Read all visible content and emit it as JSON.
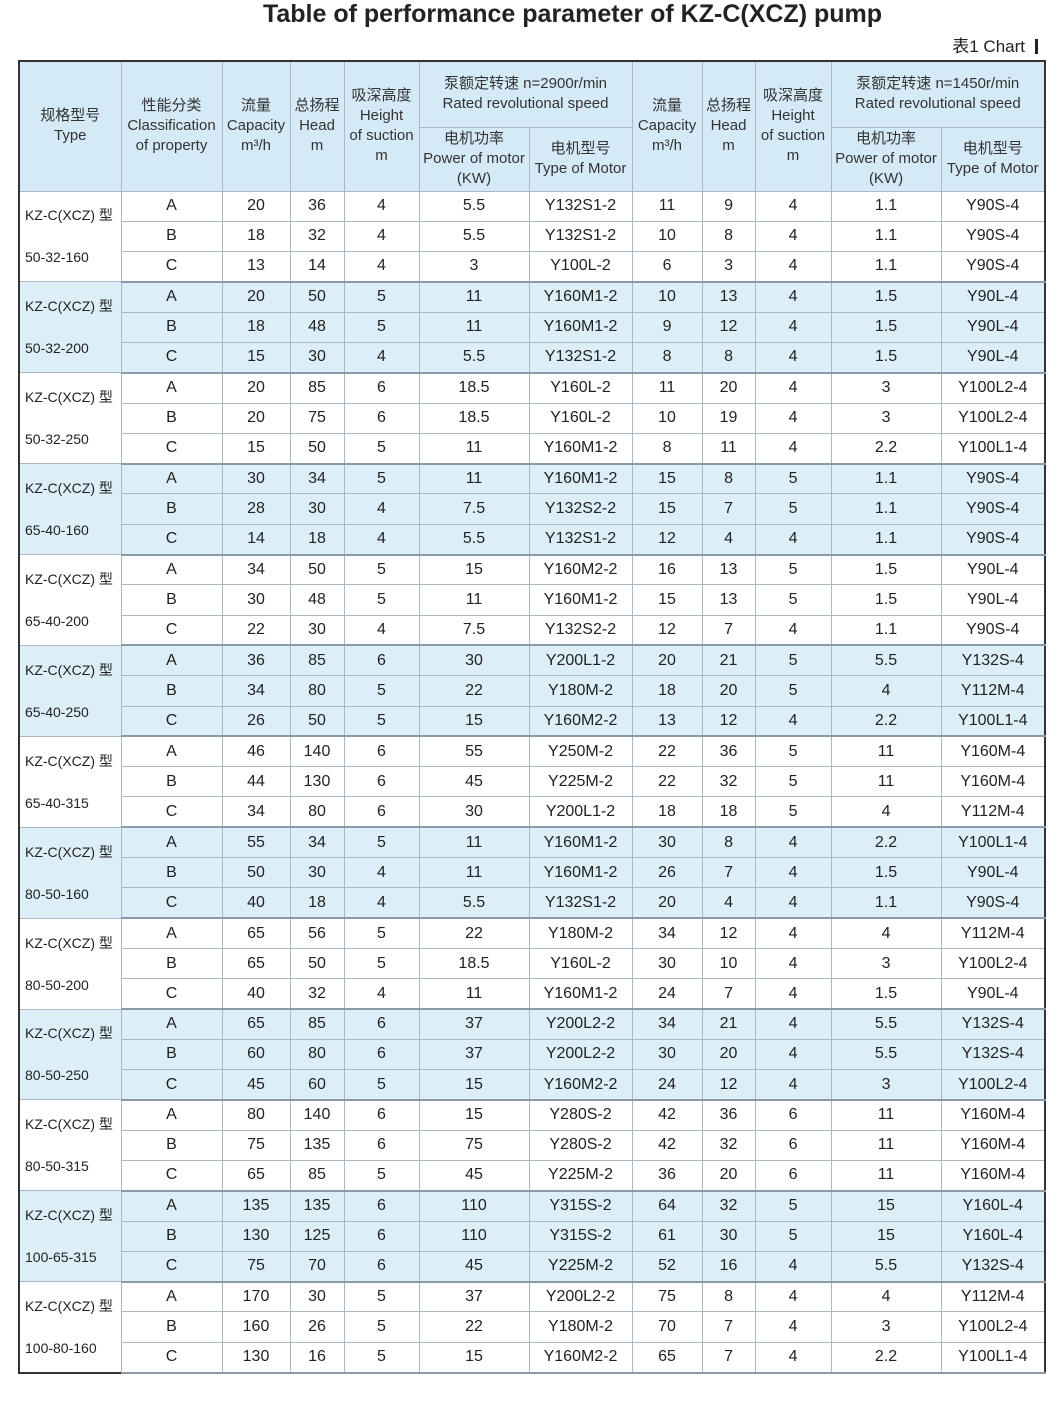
{
  "title": "Table of performance parameter of KZ-C(XCZ) pump",
  "chart_label": "表1  Chart",
  "header": {
    "left": [
      [
        "规格型号",
        "Type"
      ],
      [
        "性能分类",
        "Classification",
        "of property"
      ],
      [
        "流量",
        "Capacity",
        "m³/h"
      ],
      [
        "总扬程",
        "Head",
        "m"
      ],
      [
        "吸深高度",
        "Height",
        "of suction",
        "m"
      ]
    ],
    "speed_1": {
      "label": [
        "泵额定转速 n=2900r/min",
        "Rated revolutional speed"
      ],
      "sub": [
        [
          "电机功率",
          "Power of motor",
          "(KW)"
        ],
        [
          "电机型号",
          "Type of Motor"
        ]
      ]
    },
    "mid": [
      [
        "流量",
        "Capacity",
        "m³/h"
      ],
      [
        "总扬程",
        "Head",
        "m"
      ],
      [
        "吸深高度",
        "Height",
        "of suction",
        "m"
      ]
    ],
    "speed_2": {
      "label": [
        "泵额定转速 n=1450r/min",
        "Rated revolutional speed"
      ],
      "sub": [
        [
          "电机功率",
          "Power of motor",
          "(KW)"
        ],
        [
          "电机型号",
          "Type of Motor"
        ]
      ]
    }
  },
  "groups": [
    {
      "model": [
        "KZ-C(XCZ) 型",
        "50-32-160"
      ],
      "rows": [
        [
          "A",
          20,
          36,
          4,
          5.5,
          "Y132S1-2",
          11,
          9,
          4,
          1.1,
          "Y90S-4"
        ],
        [
          "B",
          18,
          32,
          4,
          5.5,
          "Y132S1-2",
          10,
          8,
          4,
          1.1,
          "Y90S-4"
        ],
        [
          "C",
          13,
          14,
          4,
          3,
          "Y100L-2",
          6,
          3,
          4,
          1.1,
          "Y90S-4"
        ]
      ]
    },
    {
      "model": [
        "KZ-C(XCZ) 型",
        "50-32-200"
      ],
      "rows": [
        [
          "A",
          20,
          50,
          5,
          11,
          "Y160M1-2",
          10,
          13,
          4,
          1.5,
          "Y90L-4"
        ],
        [
          "B",
          18,
          48,
          5,
          11,
          "Y160M1-2",
          9,
          12,
          4,
          1.5,
          "Y90L-4"
        ],
        [
          "C",
          15,
          30,
          4,
          5.5,
          "Y132S1-2",
          8,
          8,
          4,
          1.5,
          "Y90L-4"
        ]
      ]
    },
    {
      "model": [
        "KZ-C(XCZ) 型",
        "50-32-250"
      ],
      "rows": [
        [
          "A",
          20,
          85,
          6,
          18.5,
          "Y160L-2",
          11,
          20,
          4,
          3,
          "Y100L2-4"
        ],
        [
          "B",
          20,
          75,
          6,
          18.5,
          "Y160L-2",
          10,
          19,
          4,
          3,
          "Y100L2-4"
        ],
        [
          "C",
          15,
          50,
          5,
          11,
          "Y160M1-2",
          8,
          11,
          4,
          2.2,
          "Y100L1-4"
        ]
      ]
    },
    {
      "model": [
        "KZ-C(XCZ) 型",
        "65-40-160"
      ],
      "rows": [
        [
          "A",
          30,
          34,
          5,
          11,
          "Y160M1-2",
          15,
          8,
          5,
          1.1,
          "Y90S-4"
        ],
        [
          "B",
          28,
          30,
          4,
          7.5,
          "Y132S2-2",
          15,
          7,
          5,
          1.1,
          "Y90S-4"
        ],
        [
          "C",
          14,
          18,
          4,
          5.5,
          "Y132S1-2",
          12,
          4,
          4,
          1.1,
          "Y90S-4"
        ]
      ]
    },
    {
      "model": [
        "KZ-C(XCZ) 型",
        "65-40-200"
      ],
      "rows": [
        [
          "A",
          34,
          50,
          5,
          15,
          "Y160M2-2",
          16,
          13,
          5,
          1.5,
          "Y90L-4"
        ],
        [
          "B",
          30,
          48,
          5,
          11,
          "Y160M1-2",
          15,
          13,
          5,
          1.5,
          "Y90L-4"
        ],
        [
          "C",
          22,
          30,
          4,
          7.5,
          "Y132S2-2",
          12,
          7,
          4,
          1.1,
          "Y90S-4"
        ]
      ]
    },
    {
      "model": [
        "KZ-C(XCZ) 型",
        "65-40-250"
      ],
      "rows": [
        [
          "A",
          36,
          85,
          6,
          30,
          "Y200L1-2",
          20,
          21,
          5,
          5.5,
          "Y132S-4"
        ],
        [
          "B",
          34,
          80,
          5,
          22,
          "Y180M-2",
          18,
          20,
          5,
          4,
          "Y112M-4"
        ],
        [
          "C",
          26,
          50,
          5,
          15,
          "Y160M2-2",
          13,
          12,
          4,
          2.2,
          "Y100L1-4"
        ]
      ]
    },
    {
      "model": [
        "KZ-C(XCZ) 型",
        "65-40-315"
      ],
      "rows": [
        [
          "A",
          46,
          140,
          6,
          55,
          "Y250M-2",
          22,
          36,
          5,
          11,
          "Y160M-4"
        ],
        [
          "B",
          44,
          130,
          6,
          45,
          "Y225M-2",
          22,
          32,
          5,
          11,
          "Y160M-4"
        ],
        [
          "C",
          34,
          80,
          6,
          30,
          "Y200L1-2",
          18,
          18,
          5,
          4,
          "Y112M-4"
        ]
      ]
    },
    {
      "model": [
        "KZ-C(XCZ) 型",
        "80-50-160"
      ],
      "rows": [
        [
          "A",
          55,
          34,
          5,
          11,
          "Y160M1-2",
          30,
          8,
          4,
          2.2,
          "Y100L1-4"
        ],
        [
          "B",
          50,
          30,
          4,
          11,
          "Y160M1-2",
          26,
          7,
          4,
          1.5,
          "Y90L-4"
        ],
        [
          "C",
          40,
          18,
          4,
          5.5,
          "Y132S1-2",
          20,
          4,
          4,
          1.1,
          "Y90S-4"
        ]
      ]
    },
    {
      "model": [
        "KZ-C(XCZ) 型",
        "80-50-200"
      ],
      "rows": [
        [
          "A",
          65,
          56,
          5,
          22,
          "Y180M-2",
          34,
          12,
          4,
          4,
          "Y112M-4"
        ],
        [
          "B",
          65,
          50,
          5,
          18.5,
          "Y160L-2",
          30,
          10,
          4,
          3,
          "Y100L2-4"
        ],
        [
          "C",
          40,
          32,
          4,
          11,
          "Y160M1-2",
          24,
          7,
          4,
          1.5,
          "Y90L-4"
        ]
      ]
    },
    {
      "model": [
        "KZ-C(XCZ) 型",
        "80-50-250"
      ],
      "rows": [
        [
          "A",
          65,
          85,
          6,
          37,
          "Y200L2-2",
          34,
          21,
          4,
          5.5,
          "Y132S-4"
        ],
        [
          "B",
          60,
          80,
          6,
          37,
          "Y200L2-2",
          30,
          20,
          4,
          5.5,
          "Y132S-4"
        ],
        [
          "C",
          45,
          60,
          5,
          15,
          "Y160M2-2",
          24,
          12,
          4,
          3,
          "Y100L2-4"
        ]
      ]
    },
    {
      "model": [
        "KZ-C(XCZ) 型",
        "80-50-315"
      ],
      "rows": [
        [
          "A",
          80,
          140,
          6,
          15,
          "Y280S-2",
          42,
          36,
          6,
          11,
          "Y160M-4"
        ],
        [
          "B",
          75,
          135,
          6,
          75,
          "Y280S-2",
          42,
          32,
          6,
          11,
          "Y160M-4"
        ],
        [
          "C",
          65,
          85,
          5,
          45,
          "Y225M-2",
          36,
          20,
          6,
          11,
          "Y160M-4"
        ]
      ]
    },
    {
      "model": [
        "KZ-C(XCZ) 型",
        "100-65-315"
      ],
      "rows": [
        [
          "A",
          135,
          135,
          6,
          110,
          "Y315S-2",
          64,
          32,
          5,
          15,
          "Y160L-4"
        ],
        [
          "B",
          130,
          125,
          6,
          110,
          "Y315S-2",
          61,
          30,
          5,
          15,
          "Y160L-4"
        ],
        [
          "C",
          75,
          70,
          6,
          45,
          "Y225M-2",
          52,
          16,
          4,
          5.5,
          "Y132S-4"
        ]
      ]
    },
    {
      "model": [
        "KZ-C(XCZ) 型",
        "100-80-160"
      ],
      "rows": [
        [
          "A",
          170,
          30,
          5,
          37,
          "Y200L2-2",
          75,
          8,
          4,
          4,
          "Y112M-4"
        ],
        [
          "B",
          160,
          26,
          5,
          22,
          "Y180M-2",
          70,
          7,
          4,
          3,
          "Y100L2-4"
        ],
        [
          "C",
          130,
          16,
          5,
          15,
          "Y160M2-2",
          65,
          7,
          4,
          2.2,
          "Y100L1-4"
        ]
      ]
    }
  ]
}
